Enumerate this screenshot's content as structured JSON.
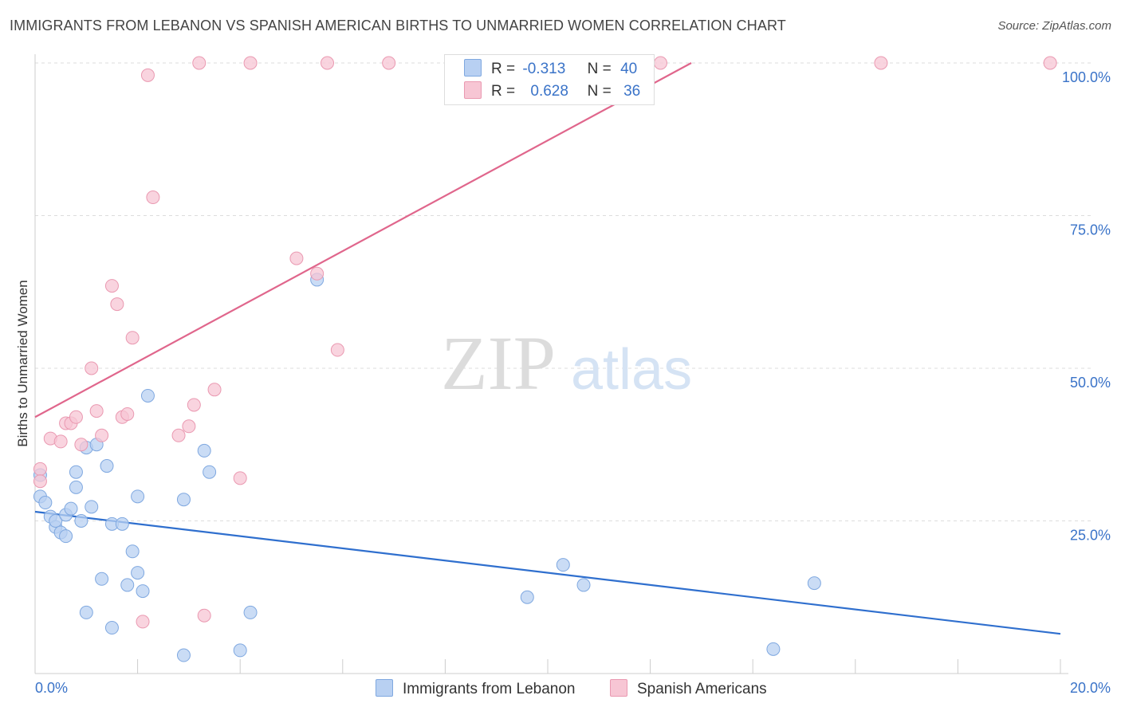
{
  "title": "IMMIGRANTS FROM LEBANON VS SPANISH AMERICAN BIRTHS TO UNMARRIED WOMEN CORRELATION CHART",
  "source": "Source: ZipAtlas.com",
  "watermark": {
    "zip": "ZIP",
    "atlas": "atlas"
  },
  "legend": {
    "r_label": "R =",
    "n_label": "N =",
    "series1": {
      "r": "-0.313",
      "n": "40"
    },
    "series2": {
      "r": "0.628",
      "n": "36"
    }
  },
  "colors": {
    "series1_fill": "#b8d0f2",
    "series1_stroke": "#7fa8e0",
    "series1_line": "#2f6fce",
    "series2_fill": "#f7c6d4",
    "series2_stroke": "#ea99b1",
    "series2_line": "#e0668c",
    "tick_label": "#3a73c8",
    "grid": "#dddddd"
  },
  "chart_data": {
    "type": "scatter",
    "title": "IMMIGRANTS FROM LEBANON VS SPANISH AMERICAN BIRTHS TO UNMARRIED WOMEN CORRELATION CHART",
    "xlabel": "",
    "ylabel": "Births to Unmarried Women",
    "xlim": [
      0,
      20
    ],
    "ylim": [
      0,
      100
    ],
    "x_tick_labels": [
      "0.0%",
      "20.0%"
    ],
    "y_tick_labels": [
      "25.0%",
      "50.0%",
      "75.0%",
      "100.0%"
    ],
    "y_ticks": [
      25,
      50,
      75,
      100
    ],
    "grid": true,
    "legend_position": "top-center",
    "series": [
      {
        "name": "Immigrants from Lebanon",
        "points": [
          [
            0.1,
            32.5
          ],
          [
            0.1,
            29.0
          ],
          [
            0.2,
            28.0
          ],
          [
            0.3,
            25.7
          ],
          [
            0.4,
            24.0
          ],
          [
            0.4,
            25.0
          ],
          [
            0.5,
            23.1
          ],
          [
            0.6,
            26.0
          ],
          [
            0.6,
            22.5
          ],
          [
            0.7,
            27.0
          ],
          [
            0.8,
            33.0
          ],
          [
            0.8,
            30.5
          ],
          [
            0.9,
            25.0
          ],
          [
            1.0,
            37.0
          ],
          [
            1.0,
            10.0
          ],
          [
            1.1,
            27.3
          ],
          [
            1.2,
            37.5
          ],
          [
            1.3,
            15.5
          ],
          [
            1.4,
            34.0
          ],
          [
            1.5,
            24.5
          ],
          [
            1.5,
            7.5
          ],
          [
            1.7,
            24.5
          ],
          [
            1.8,
            14.5
          ],
          [
            1.9,
            20.0
          ],
          [
            2.0,
            29.0
          ],
          [
            2.0,
            16.5
          ],
          [
            2.1,
            13.5
          ],
          [
            2.2,
            45.5
          ],
          [
            2.9,
            28.5
          ],
          [
            2.9,
            3.0
          ],
          [
            3.3,
            36.5
          ],
          [
            3.4,
            33.0
          ],
          [
            4.0,
            3.8
          ],
          [
            4.2,
            10.0
          ],
          [
            5.5,
            64.5
          ],
          [
            9.6,
            12.5
          ],
          [
            10.3,
            17.8
          ],
          [
            10.7,
            14.5
          ],
          [
            14.4,
            4.0
          ],
          [
            15.2,
            14.8
          ]
        ],
        "trend": {
          "x": [
            0,
            20
          ],
          "y": [
            26.5,
            6.5
          ]
        }
      },
      {
        "name": "Spanish Americans",
        "points": [
          [
            0.1,
            33.5
          ],
          [
            0.1,
            31.5
          ],
          [
            0.3,
            38.5
          ],
          [
            0.5,
            38.0
          ],
          [
            0.6,
            41.0
          ],
          [
            0.7,
            41.0
          ],
          [
            0.8,
            42.0
          ],
          [
            0.9,
            37.5
          ],
          [
            1.1,
            50.0
          ],
          [
            1.2,
            43.0
          ],
          [
            1.3,
            39.0
          ],
          [
            1.5,
            63.5
          ],
          [
            1.6,
            60.5
          ],
          [
            1.7,
            42.0
          ],
          [
            1.8,
            42.5
          ],
          [
            1.9,
            55.0
          ],
          [
            2.1,
            8.5
          ],
          [
            2.2,
            98.0
          ],
          [
            2.3,
            78.0
          ],
          [
            2.8,
            39.0
          ],
          [
            3.0,
            40.5
          ],
          [
            3.1,
            44.0
          ],
          [
            3.2,
            100.0
          ],
          [
            3.3,
            9.5
          ],
          [
            3.5,
            46.5
          ],
          [
            4.0,
            32.0
          ],
          [
            4.2,
            100.0
          ],
          [
            5.1,
            68.0
          ],
          [
            5.5,
            65.5
          ],
          [
            5.7,
            100.0
          ],
          [
            5.9,
            53.0
          ],
          [
            6.9,
            100.0
          ],
          [
            8.9,
            100.0
          ],
          [
            12.2,
            100.0
          ],
          [
            16.5,
            100.0
          ],
          [
            19.8,
            100.0
          ]
        ],
        "trend": {
          "x": [
            0,
            12.8
          ],
          "y": [
            42.0,
            100.0
          ]
        }
      }
    ]
  }
}
